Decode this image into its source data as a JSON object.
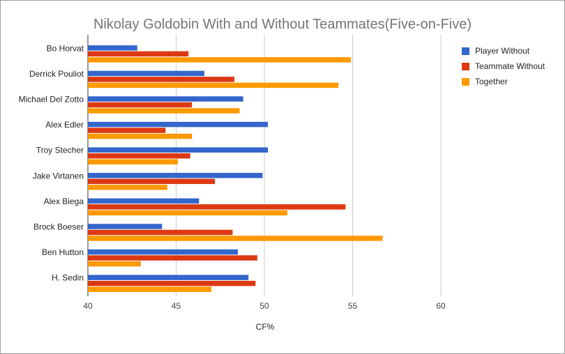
{
  "chart_data": {
    "type": "bar",
    "orientation": "horizontal",
    "title": "Nikolay Goldobin With and Without Teammates(Five-on-Five)",
    "xlabel": "CF%",
    "ylabel": "",
    "xlim": [
      40,
      60
    ],
    "x_ticks": [
      "40",
      "45",
      "50",
      "55",
      "60"
    ],
    "grid": true,
    "legend_position": "top-right",
    "categories": [
      "Bo Horvat",
      "Derrick Pouliot",
      "Michael Del Zotto",
      "Alex Edler",
      "Troy Stecher",
      "Jake Virtanen",
      "Alex Biega",
      "Brock Boeser",
      "Ben Hutton",
      "H. Sedin"
    ],
    "series": [
      {
        "name": "Player Without",
        "color": "#3366cc",
        "values": [
          42.8,
          46.6,
          48.8,
          50.2,
          50.2,
          49.9,
          46.3,
          44.2,
          48.5,
          49.1
        ]
      },
      {
        "name": "Teammate Without",
        "color": "#dc3912",
        "values": [
          45.7,
          48.3,
          45.9,
          44.4,
          45.8,
          47.2,
          54.6,
          48.2,
          49.6,
          49.5
        ]
      },
      {
        "name": "Together",
        "color": "#ff9900",
        "values": [
          54.9,
          54.2,
          48.6,
          45.9,
          45.1,
          44.5,
          51.3,
          56.7,
          43.0,
          47.0
        ]
      }
    ]
  }
}
